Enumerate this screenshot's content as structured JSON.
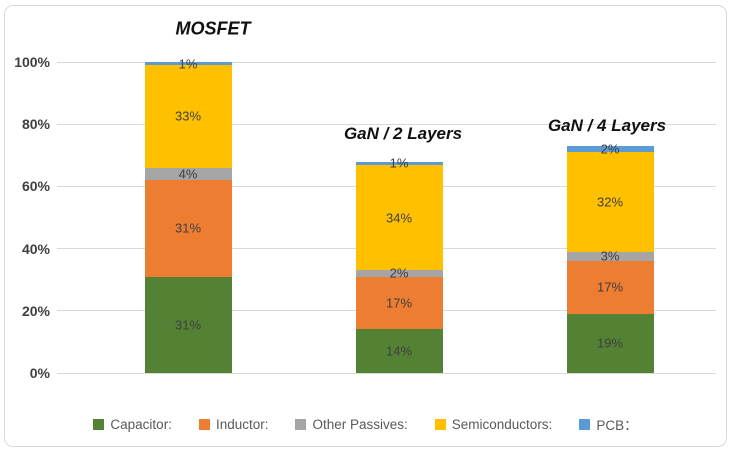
{
  "chart": {
    "background_color": "#FFFFFF",
    "border_color": "#D9D9D9",
    "gridline_color": "#D9D9D9",
    "axis_label_color": "#404040",
    "data_label_color": "#404040",
    "legend_text_color": "#595959"
  },
  "chart_data": {
    "type": "bar",
    "stacked": true,
    "orientation": "vertical",
    "categories": [
      "MOSFET",
      "GaN / 2 Layers",
      "GaN / 4 Layers"
    ],
    "series": [
      {
        "name": "Capacitor:",
        "color": "#548235",
        "values": [
          31,
          14,
          19
        ]
      },
      {
        "name": "Inductor:",
        "color": "#ED7D31",
        "values": [
          31,
          17,
          17
        ]
      },
      {
        "name": "Other Passives:",
        "color": "#A5A5A5",
        "values": [
          4,
          2,
          3
        ]
      },
      {
        "name": "Semiconductors:",
        "color": "#FFC000",
        "values": [
          33,
          34,
          32
        ]
      },
      {
        "name": "PCB：",
        "color": "#5B9BD5",
        "values": [
          1,
          1,
          2
        ]
      }
    ],
    "stack_totals": [
      100,
      68,
      73
    ],
    "data_label_format": "{value}%",
    "y_ticks": [
      "0%",
      "20%",
      "40%",
      "60%",
      "80%",
      "100%"
    ],
    "y_tick_values": [
      0,
      20,
      40,
      60,
      80,
      100
    ],
    "ylim": [
      0,
      100
    ],
    "grid": true,
    "legend_position": "bottom"
  }
}
